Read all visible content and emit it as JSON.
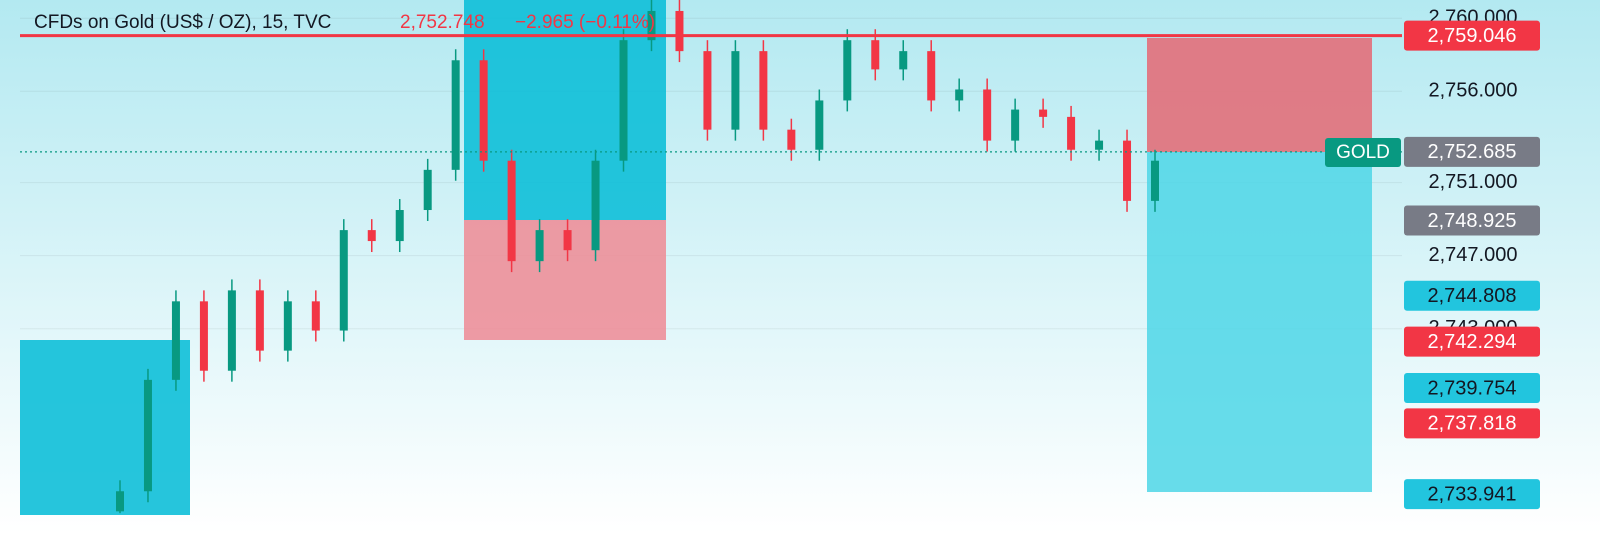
{
  "chart_data": {
    "type": "candlestick",
    "title": "CFDs on Gold (US$ / OZ), 15, TVC",
    "last_price": "2,752.748",
    "change": "−2.965 (−0.11%)",
    "symbol_label": "GOLD",
    "ylim": [
      2732.8,
      2761
    ],
    "yticks": [
      {
        "value": 2760,
        "label": "2,760.000"
      },
      {
        "value": 2756,
        "label": "2,756.000"
      },
      {
        "value": 2751,
        "label": "2,751.000"
      },
      {
        "value": 2747,
        "label": "2,747.000"
      },
      {
        "value": 2743,
        "label": "2,743.000"
      }
    ],
    "grid": true,
    "up_color": "#089981",
    "down_color": "#f23645",
    "open": [
      2733.0,
      2734.1,
      2740.2,
      2744.5,
      2740.7,
      2745.1,
      2741.8,
      2744.5,
      2742.9,
      2748.4,
      2747.8,
      2749.5,
      2751.7,
      2757.7,
      2752.2,
      2746.7,
      2748.4,
      2747.3,
      2752.2,
      2758.8,
      2760.4,
      2758.2,
      2753.9,
      2758.2,
      2753.9,
      2752.8,
      2755.5,
      2758.8,
      2757.2,
      2758.2,
      2755.5,
      2756.1,
      2753.3,
      2755.0,
      2754.6,
      2752.8,
      2753.3,
      2750.0
    ],
    "high": [
      2734.7,
      2740.8,
      2745.1,
      2745.1,
      2745.7,
      2745.7,
      2745.1,
      2745.1,
      2749.0,
      2749.0,
      2750.1,
      2752.3,
      2758.3,
      2758.3,
      2752.8,
      2749.0,
      2749.0,
      2752.8,
      2759.4,
      2761.0,
      2761.0,
      2758.8,
      2758.8,
      2758.8,
      2754.5,
      2756.1,
      2759.4,
      2759.4,
      2758.8,
      2758.8,
      2756.7,
      2756.7,
      2755.6,
      2755.6,
      2755.2,
      2753.9,
      2753.9,
      2752.8
    ],
    "low": [
      2732.9,
      2733.5,
      2739.6,
      2740.1,
      2740.1,
      2741.2,
      2741.2,
      2742.3,
      2742.3,
      2747.2,
      2747.2,
      2748.9,
      2751.1,
      2751.6,
      2746.1,
      2746.1,
      2746.7,
      2746.7,
      2751.6,
      2758.2,
      2757.6,
      2753.3,
      2753.3,
      2753.3,
      2752.2,
      2752.2,
      2754.9,
      2756.6,
      2756.6,
      2754.9,
      2754.9,
      2752.7,
      2752.7,
      2754.0,
      2752.2,
      2752.2,
      2749.4,
      2749.4
    ],
    "close": [
      2734.1,
      2740.2,
      2744.5,
      2740.7,
      2745.1,
      2741.8,
      2744.5,
      2742.9,
      2748.4,
      2747.8,
      2749.5,
      2751.7,
      2757.7,
      2752.2,
      2746.7,
      2748.4,
      2747.3,
      2752.2,
      2758.8,
      2760.4,
      2758.2,
      2753.9,
      2758.2,
      2753.9,
      2752.8,
      2755.5,
      2758.8,
      2757.2,
      2758.2,
      2755.5,
      2756.1,
      2753.3,
      2755.0,
      2754.6,
      2752.8,
      2753.3,
      2750.0,
      2752.2
    ],
    "price_lines": [
      {
        "value": 2759.046,
        "color": "#f23645",
        "style": "solid"
      },
      {
        "value": 2752.685,
        "color": "#089981",
        "style": "dotted"
      }
    ],
    "badges": [
      {
        "value": 2759.046,
        "label": "2,759.046",
        "color": "#f23645"
      },
      {
        "value": 2752.685,
        "label": "2,752.685",
        "color": "#787b86"
      },
      {
        "value": 2748.925,
        "label": "2,748.925",
        "color": "#787b86"
      },
      {
        "value": 2744.808,
        "label": "2,744.808",
        "color": "#22c5de"
      },
      {
        "value": 2742.294,
        "label": "2,742.294",
        "color": "#f23645"
      },
      {
        "value": 2739.754,
        "label": "2,739.754",
        "color": "#22c5de"
      },
      {
        "value": 2737.818,
        "label": "2,737.818",
        "color": "#f23645"
      },
      {
        "value": 2733.941,
        "label": "2,733.941",
        "color": "#22c5de"
      }
    ]
  }
}
